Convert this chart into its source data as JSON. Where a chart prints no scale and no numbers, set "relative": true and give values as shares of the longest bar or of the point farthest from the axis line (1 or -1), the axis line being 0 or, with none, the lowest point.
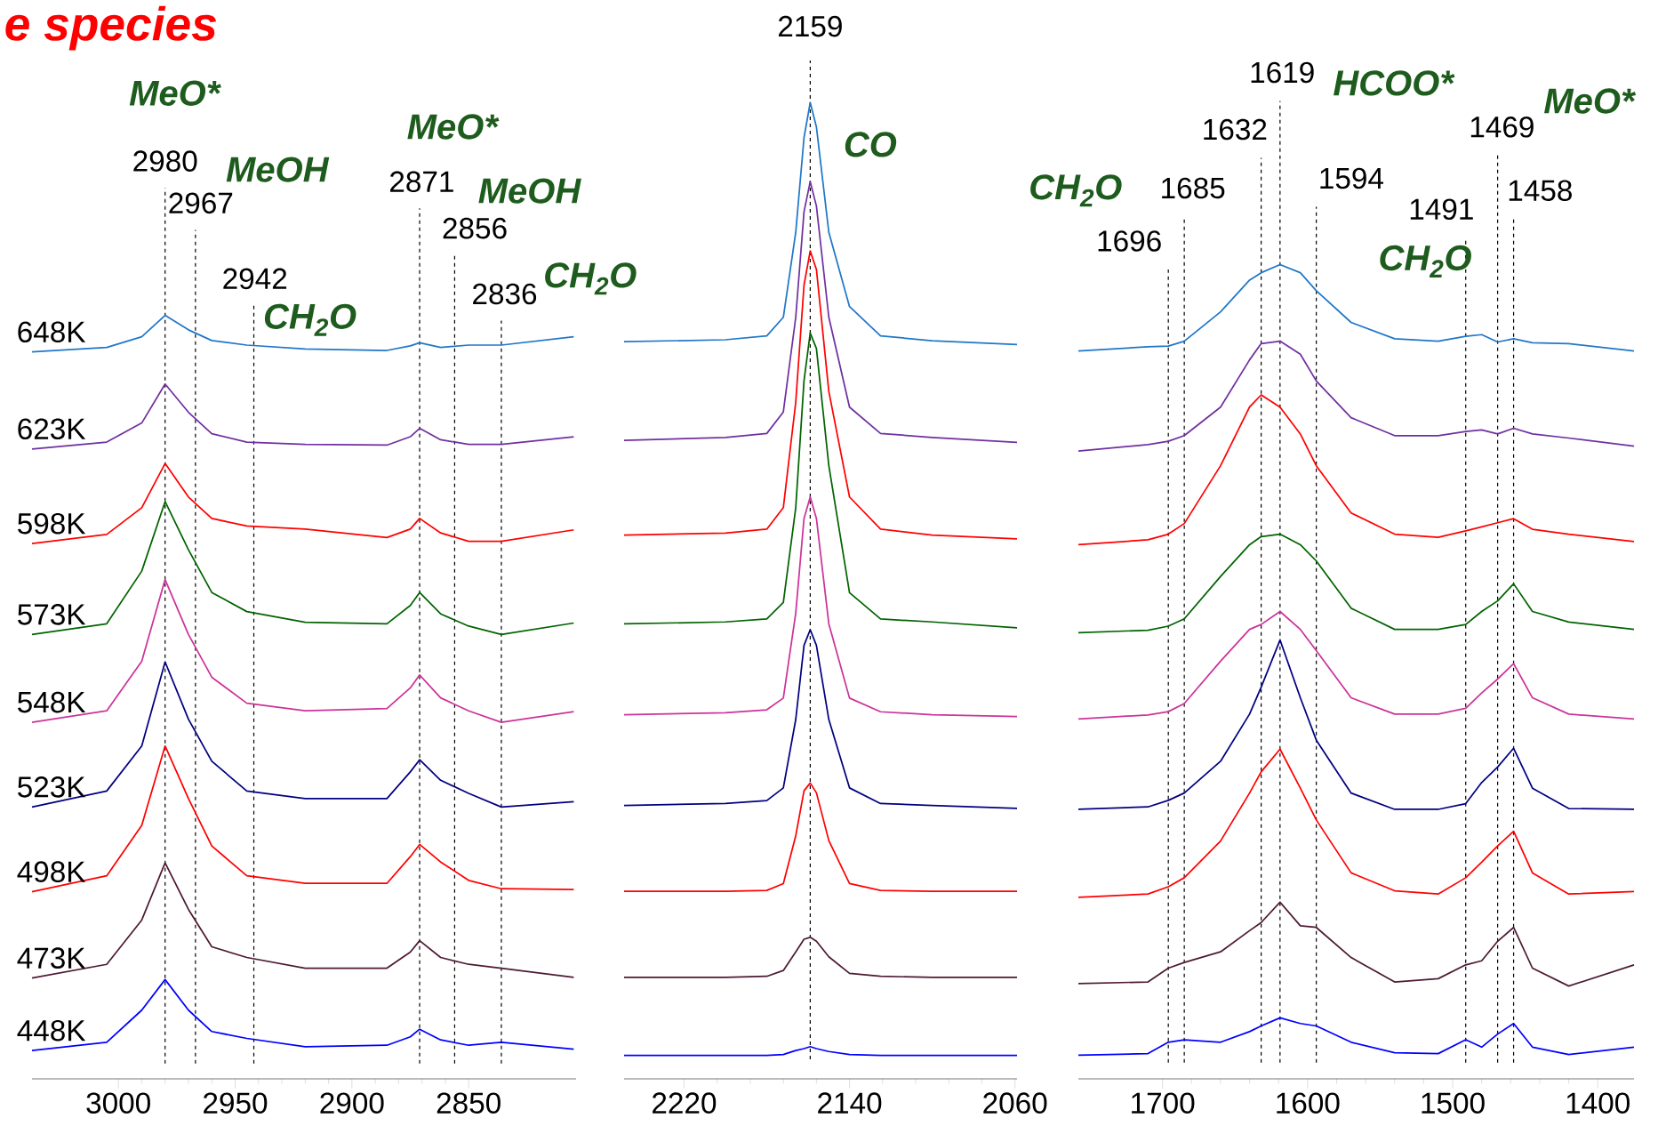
{
  "chart_data": [
    {
      "type": "line",
      "title": "e species",
      "relative": true,
      "xlim": [
        3037,
        2804
      ],
      "xticks": [
        3000,
        2950,
        2900,
        2850
      ],
      "x": [
        3037,
        3005,
        2990,
        2980,
        2970,
        2960,
        2945,
        2920,
        2885,
        2875,
        2871,
        2862,
        2850,
        2836,
        2805
      ],
      "series": [
        {
          "name": "648K",
          "color": "#1f77c8",
          "values": [
            0.952,
            0.958,
            0.972,
            1,
            0.981,
            0.967,
            0.961,
            0.956,
            0.954,
            0.96,
            0.964,
            0.958,
            0.961,
            0.961,
            0.972
          ]
        },
        {
          "name": "623K",
          "color": "#7030a0",
          "values": [
            0.825,
            0.834,
            0.859,
            0.91,
            0.873,
            0.845,
            0.834,
            0.831,
            0.83,
            0.841,
            0.852,
            0.837,
            0.831,
            0.831,
            0.841
          ]
        },
        {
          "name": "598K",
          "color": "#ff0000",
          "values": [
            0.701,
            0.713,
            0.748,
            0.806,
            0.762,
            0.734,
            0.724,
            0.72,
            0.709,
            0.72,
            0.734,
            0.715,
            0.704,
            0.704,
            0.719
          ]
        },
        {
          "name": "573K",
          "color": "#006400",
          "values": [
            0.582,
            0.596,
            0.665,
            0.756,
            0.693,
            0.637,
            0.612,
            0.598,
            0.596,
            0.62,
            0.637,
            0.609,
            0.593,
            0.582,
            0.597
          ]
        },
        {
          "name": "548K",
          "color": "#cc3399",
          "values": [
            0.467,
            0.482,
            0.547,
            0.654,
            0.582,
            0.526,
            0.492,
            0.482,
            0.485,
            0.512,
            0.529,
            0.499,
            0.482,
            0.467,
            0.481
          ]
        },
        {
          "name": "523K",
          "color": "#000080",
          "values": [
            0.356,
            0.377,
            0.436,
            0.546,
            0.471,
            0.416,
            0.377,
            0.367,
            0.367,
            0.402,
            0.418,
            0.391,
            0.374,
            0.356,
            0.363
          ]
        },
        {
          "name": "498K",
          "color": "#ff0000",
          "values": [
            0.245,
            0.266,
            0.332,
            0.436,
            0.367,
            0.305,
            0.266,
            0.256,
            0.256,
            0.291,
            0.307,
            0.284,
            0.26,
            0.249,
            0.248
          ]
        },
        {
          "name": "473K",
          "color": "#4d1a33",
          "values": [
            0.132,
            0.15,
            0.208,
            0.283,
            0.222,
            0.173,
            0.159,
            0.145,
            0.145,
            0.166,
            0.181,
            0.159,
            0.15,
            0.145,
            0.133
          ]
        },
        {
          "name": "448K",
          "color": "#0000ff",
          "values": [
            0.037,
            0.048,
            0.09,
            0.13,
            0.09,
            0.062,
            0.053,
            0.042,
            0.044,
            0.055,
            0.065,
            0.051,
            0.044,
            0.048,
            0.039
          ]
        }
      ],
      "ref_lines": [
        {
          "axis": "x",
          "value": 2980,
          "label": "2980",
          "color": "#000000",
          "line_style": "dashed"
        },
        {
          "axis": "x",
          "value": 2967,
          "label": "2967",
          "color": "#000000",
          "line_style": "dashed"
        },
        {
          "axis": "x",
          "value": 2942,
          "label": "2942",
          "color": "#000000",
          "line_style": "dashed"
        },
        {
          "axis": "x",
          "value": 2871,
          "label": "2871",
          "color": "#000000",
          "line_style": "dashed"
        },
        {
          "axis": "x",
          "value": 2856,
          "label": "2856",
          "color": "#000000",
          "line_style": "dashed"
        },
        {
          "axis": "x",
          "value": 2836,
          "label": "2836",
          "color": "#000000",
          "line_style": "dashed"
        }
      ],
      "annotations": [
        "MeO*",
        "MeOH",
        "CH$_{2}$O",
        "MeO*",
        "MeOH",
        "CH$_{2}$O"
      ]
    },
    {
      "type": "line",
      "relative": true,
      "xlim": [
        2249,
        2059
      ],
      "xticks": [
        2220,
        2140,
        2060
      ],
      "x": [
        2249,
        2200,
        2180,
        2172,
        2166,
        2162,
        2159,
        2156,
        2150,
        2140,
        2125,
        2100,
        2059
      ],
      "series": [
        {
          "color": "#1f77c8",
          "values": [
            0.755,
            0.757,
            0.761,
            0.78,
            0.867,
            0.964,
            1,
            0.975,
            0.867,
            0.791,
            0.761,
            0.756,
            0.752
          ]
        },
        {
          "color": "#7030a0",
          "values": [
            0.654,
            0.657,
            0.661,
            0.683,
            0.78,
            0.888,
            0.919,
            0.894,
            0.78,
            0.688,
            0.661,
            0.657,
            0.652
          ]
        },
        {
          "color": "#ff0000",
          "values": [
            0.557,
            0.559,
            0.563,
            0.585,
            0.693,
            0.813,
            0.848,
            0.829,
            0.704,
            0.596,
            0.563,
            0.557,
            0.553
          ]
        },
        {
          "color": "#006400",
          "values": [
            0.466,
            0.468,
            0.471,
            0.488,
            0.585,
            0.715,
            0.764,
            0.748,
            0.628,
            0.498,
            0.471,
            0.468,
            0.462
          ]
        },
        {
          "color": "#cc3399",
          "values": [
            0.373,
            0.375,
            0.378,
            0.39,
            0.477,
            0.574,
            0.596,
            0.574,
            0.466,
            0.39,
            0.376,
            0.373,
            0.371
          ]
        },
        {
          "color": "#000080",
          "values": [
            0.28,
            0.282,
            0.285,
            0.298,
            0.368,
            0.444,
            0.46,
            0.444,
            0.368,
            0.298,
            0.282,
            0.28,
            0.277
          ]
        },
        {
          "color": "#ff0000",
          "values": [
            0.192,
            0.192,
            0.193,
            0.2,
            0.249,
            0.295,
            0.303,
            0.293,
            0.244,
            0.2,
            0.193,
            0.192,
            0.192
          ]
        },
        {
          "color": "#4d1a33",
          "values": [
            0.104,
            0.104,
            0.105,
            0.111,
            0.13,
            0.143,
            0.145,
            0.141,
            0.125,
            0.108,
            0.105,
            0.104,
            0.104
          ]
        },
        {
          "color": "#0000ff",
          "values": [
            0.024,
            0.024,
            0.024,
            0.025,
            0.029,
            0.031,
            0.033,
            0.031,
            0.028,
            0.025,
            0.024,
            0.024,
            0.024
          ]
        }
      ],
      "ref_lines": [
        {
          "axis": "x",
          "value": 2159,
          "label": "2159",
          "color": "#000000",
          "line_style": "dashed"
        }
      ],
      "annotations": [
        "CO"
      ]
    },
    {
      "type": "line",
      "relative": true,
      "xlim": [
        1758,
        1375
      ],
      "xticks": [
        1700,
        1600,
        1500,
        1400
      ],
      "x": [
        1758,
        1710,
        1696,
        1685,
        1660,
        1640,
        1632,
        1619,
        1605,
        1594,
        1570,
        1540,
        1510,
        1491,
        1480,
        1469,
        1458,
        1445,
        1420,
        1375
      ],
      "series": [
        {
          "color": "#1f77c8",
          "values": [
            0.894,
            0.899,
            0.9,
            0.906,
            0.942,
            0.981,
            0.99,
            1,
            0.99,
            0.968,
            0.929,
            0.909,
            0.906,
            0.912,
            0.914,
            0.905,
            0.909,
            0.904,
            0.903,
            0.894
          ]
        },
        {
          "color": "#7030a0",
          "values": [
            0.771,
            0.779,
            0.783,
            0.79,
            0.825,
            0.883,
            0.903,
            0.906,
            0.89,
            0.857,
            0.812,
            0.79,
            0.79,
            0.795,
            0.797,
            0.792,
            0.799,
            0.792,
            0.787,
            0.777
          ]
        },
        {
          "color": "#ff0000",
          "values": [
            0.656,
            0.662,
            0.669,
            0.682,
            0.753,
            0.825,
            0.84,
            0.825,
            0.792,
            0.753,
            0.695,
            0.669,
            0.665,
            0.673,
            0.678,
            0.683,
            0.688,
            0.675,
            0.669,
            0.66
          ]
        },
        {
          "color": "#006400",
          "values": [
            0.548,
            0.551,
            0.556,
            0.565,
            0.617,
            0.656,
            0.666,
            0.669,
            0.656,
            0.636,
            0.578,
            0.552,
            0.552,
            0.558,
            0.574,
            0.587,
            0.608,
            0.574,
            0.561,
            0.552
          ]
        },
        {
          "color": "#cc3399",
          "values": [
            0.442,
            0.447,
            0.451,
            0.461,
            0.513,
            0.552,
            0.558,
            0.574,
            0.552,
            0.526,
            0.468,
            0.448,
            0.448,
            0.455,
            0.474,
            0.491,
            0.51,
            0.468,
            0.448,
            0.442
          ]
        },
        {
          "color": "#000080",
          "values": [
            0.331,
            0.334,
            0.342,
            0.351,
            0.39,
            0.448,
            0.481,
            0.539,
            0.468,
            0.416,
            0.351,
            0.331,
            0.331,
            0.338,
            0.364,
            0.383,
            0.406,
            0.357,
            0.332,
            0.331
          ]
        },
        {
          "color": "#ff0000",
          "values": [
            0.223,
            0.227,
            0.236,
            0.247,
            0.292,
            0.351,
            0.377,
            0.405,
            0.357,
            0.318,
            0.253,
            0.231,
            0.227,
            0.247,
            0.266,
            0.286,
            0.304,
            0.253,
            0.227,
            0.23
          ]
        },
        {
          "color": "#4d1a33",
          "values": [
            0.117,
            0.119,
            0.136,
            0.143,
            0.156,
            0.182,
            0.192,
            0.217,
            0.188,
            0.186,
            0.149,
            0.119,
            0.123,
            0.14,
            0.145,
            0.169,
            0.186,
            0.136,
            0.114,
            0.14
          ]
        },
        {
          "color": "#0000ff",
          "values": [
            0.029,
            0.031,
            0.045,
            0.048,
            0.045,
            0.058,
            0.065,
            0.075,
            0.068,
            0.065,
            0.045,
            0.032,
            0.031,
            0.048,
            0.039,
            0.055,
            0.068,
            0.039,
            0.03,
            0.039
          ]
        }
      ],
      "ref_lines": [
        {
          "axis": "x",
          "value": 1696,
          "label": "1696",
          "color": "#000000",
          "line_style": "dashed"
        },
        {
          "axis": "x",
          "value": 1685,
          "label": "1685",
          "color": "#000000",
          "line_style": "dashed"
        },
        {
          "axis": "x",
          "value": 1632,
          "label": "1632",
          "color": "#000000",
          "line_style": "dashed"
        },
        {
          "axis": "x",
          "value": 1619,
          "label": "1619",
          "color": "#000000",
          "line_style": "dashed"
        },
        {
          "axis": "x",
          "value": 1594,
          "label": "1594",
          "color": "#000000",
          "line_style": "dashed"
        },
        {
          "axis": "x",
          "value": 1491,
          "label": "1491",
          "color": "#000000",
          "line_style": "dashed"
        },
        {
          "axis": "x",
          "value": 1469,
          "label": "1469",
          "color": "#000000",
          "line_style": "dashed"
        },
        {
          "axis": "x",
          "value": 1458,
          "label": "1458",
          "color": "#000000",
          "line_style": "dashed"
        }
      ],
      "annotations": [
        "CH$_{2}$O",
        "HCOO*",
        "CH$_{2}$O",
        "MeO*"
      ]
    }
  ]
}
